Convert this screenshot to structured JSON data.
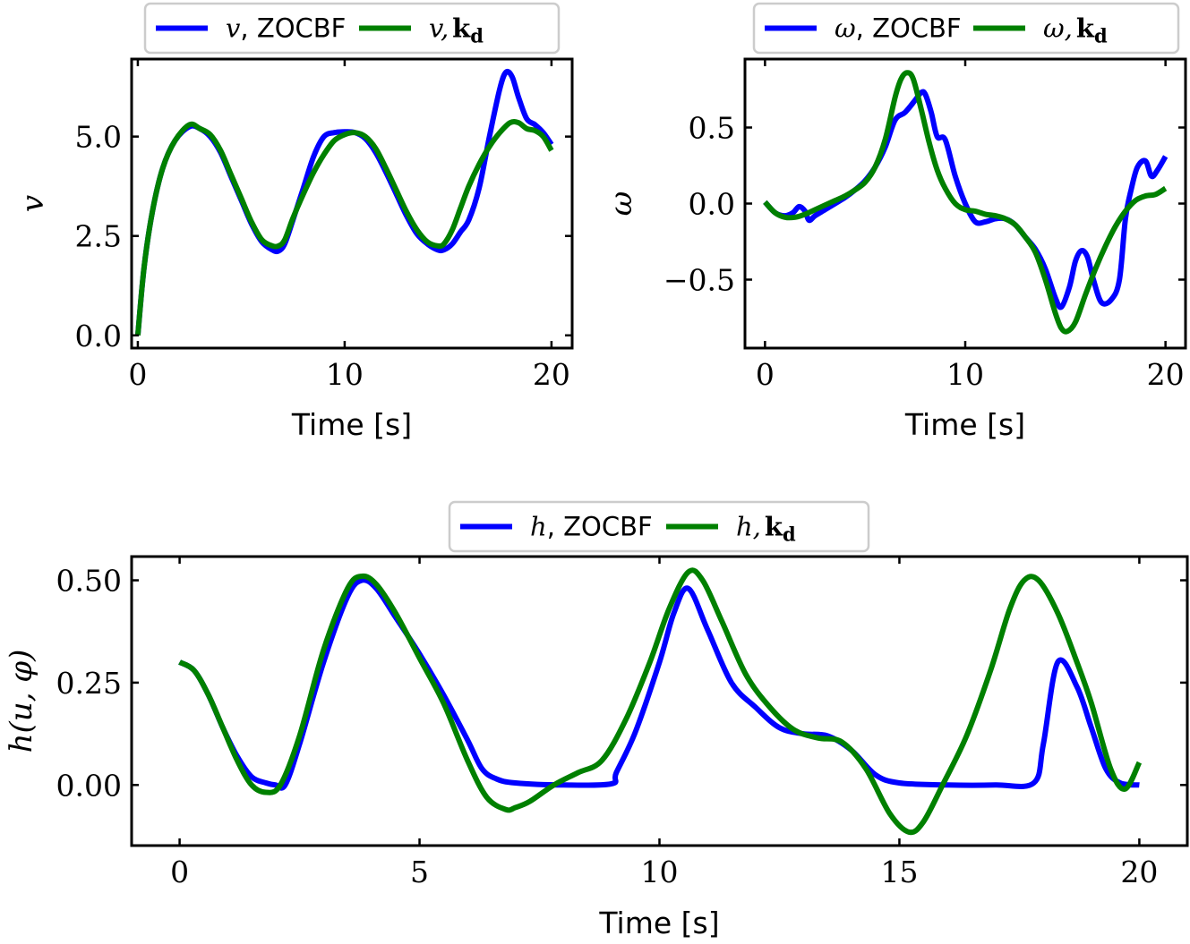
{
  "chart_data": [
    {
      "type": "line",
      "xlabel": "Time [s]",
      "ylabel": "v",
      "xlim": [
        -0.3,
        21.0
      ],
      "ylim": [
        -0.32,
        6.95
      ],
      "xticks": [
        0,
        10,
        20
      ],
      "xtick_labels": [
        "0",
        "10",
        "20"
      ],
      "yticks": [
        0.0,
        2.5,
        5.0
      ],
      "ytick_labels": [
        "0.0",
        "2.5",
        "5.0"
      ],
      "grid": false,
      "legend_position": "top-center-outside",
      "series": [
        {
          "name": "v, ZOCBF",
          "legend_var": "v",
          "legend_suffix": "ZOCBF",
          "color": "#0000ff",
          "x": [
            0,
            0.3,
            0.7,
            1.2,
            1.8,
            2.5,
            3.0,
            3.5,
            4.0,
            4.5,
            5.0,
            5.5,
            6.0,
            6.5,
            6.8,
            7.1,
            7.5,
            8.0,
            8.5,
            9.0,
            9.5,
            10.0,
            10.5,
            11.0,
            11.5,
            12.0,
            12.5,
            13.0,
            13.5,
            14.0,
            14.5,
            14.8,
            15.2,
            15.6,
            16.0,
            16.5,
            17.0,
            17.5,
            17.8,
            18.1,
            18.4,
            18.8,
            19.2,
            19.6,
            20.0
          ],
          "y": [
            0.0,
            1.7,
            3.1,
            4.2,
            4.9,
            5.25,
            5.2,
            5.0,
            4.6,
            4.0,
            3.4,
            2.8,
            2.35,
            2.15,
            2.12,
            2.3,
            2.9,
            3.7,
            4.5,
            5.0,
            5.1,
            5.12,
            5.1,
            4.95,
            4.6,
            4.1,
            3.55,
            3.0,
            2.55,
            2.3,
            2.15,
            2.15,
            2.3,
            2.6,
            2.9,
            3.7,
            5.0,
            6.2,
            6.62,
            6.5,
            6.0,
            5.45,
            5.3,
            5.1,
            4.8
          ]
        },
        {
          "name": "v, k_d",
          "legend_var": "v,",
          "legend_suffix": "kd",
          "color": "#008000",
          "x": [
            0,
            0.3,
            0.7,
            1.2,
            1.8,
            2.5,
            3.0,
            3.5,
            4.0,
            4.5,
            5.0,
            5.5,
            6.0,
            6.5,
            6.8,
            7.1,
            7.5,
            8.0,
            8.5,
            9.0,
            9.5,
            10.0,
            10.5,
            11.0,
            11.5,
            12.0,
            12.5,
            13.0,
            13.5,
            14.0,
            14.5,
            14.8,
            15.2,
            15.6,
            16.0,
            16.5,
            17.0,
            17.5,
            18.0,
            18.4,
            18.8,
            19.2,
            19.6,
            20.0
          ],
          "y": [
            0.0,
            1.7,
            3.1,
            4.2,
            4.9,
            5.3,
            5.2,
            5.05,
            4.65,
            4.05,
            3.45,
            2.85,
            2.4,
            2.25,
            2.25,
            2.4,
            2.95,
            3.55,
            4.1,
            4.55,
            4.9,
            5.05,
            5.1,
            5.0,
            4.7,
            4.2,
            3.65,
            3.1,
            2.65,
            2.35,
            2.25,
            2.3,
            2.65,
            3.2,
            3.75,
            4.3,
            4.75,
            5.1,
            5.35,
            5.35,
            5.2,
            5.15,
            5.0,
            4.65
          ]
        }
      ]
    },
    {
      "type": "line",
      "xlabel": "Time [s]",
      "ylabel": "ω",
      "xlim": [
        -1.0,
        21.0
      ],
      "ylim": [
        -0.95,
        0.95
      ],
      "xticks": [
        0,
        10,
        20
      ],
      "xtick_labels": [
        "0",
        "10",
        "20"
      ],
      "yticks": [
        -0.5,
        0.0,
        0.5
      ],
      "ytick_labels": [
        "−0.5",
        "0.0",
        "0.5"
      ],
      "grid": false,
      "legend_position": "top-center-outside",
      "series": [
        {
          "name": "ω, ZOCBF",
          "legend_var": "ω",
          "legend_suffix": "ZOCBF",
          "color": "#0000ff",
          "x": [
            0,
            0.5,
            1.0,
            1.4,
            1.7,
            2.0,
            2.2,
            2.5,
            3.0,
            3.5,
            4.0,
            4.5,
            5.0,
            5.5,
            6.0,
            6.5,
            7.0,
            7.5,
            7.8,
            8.0,
            8.3,
            8.6,
            9.0,
            9.5,
            10.0,
            10.5,
            11.0,
            11.5,
            12.0,
            12.5,
            13.0,
            13.5,
            14.0,
            14.5,
            14.8,
            15.2,
            15.5,
            15.8,
            16.1,
            16.4,
            16.8,
            17.3,
            17.7,
            18.0,
            18.3,
            18.6,
            19.0,
            19.3,
            19.6,
            20.0
          ],
          "y": [
            0.01,
            -0.06,
            -0.08,
            -0.06,
            -0.02,
            -0.05,
            -0.11,
            -0.08,
            -0.04,
            0.0,
            0.04,
            0.09,
            0.15,
            0.24,
            0.37,
            0.55,
            0.6,
            0.68,
            0.73,
            0.72,
            0.6,
            0.44,
            0.42,
            0.18,
            0.0,
            -0.12,
            -0.12,
            -0.1,
            -0.1,
            -0.14,
            -0.22,
            -0.3,
            -0.43,
            -0.62,
            -0.68,
            -0.55,
            -0.38,
            -0.31,
            -0.35,
            -0.5,
            -0.65,
            -0.63,
            -0.5,
            -0.1,
            0.1,
            0.24,
            0.28,
            0.18,
            0.22,
            0.31
          ]
        },
        {
          "name": "ω, k_d",
          "legend_var": "ω,",
          "legend_suffix": "kd",
          "color": "#008000",
          "x": [
            0,
            0.5,
            1.0,
            1.5,
            2.0,
            2.5,
            3.0,
            3.5,
            4.0,
            4.5,
            5.0,
            5.5,
            6.0,
            6.5,
            6.8,
            7.1,
            7.4,
            7.8,
            8.2,
            8.6,
            9.0,
            9.5,
            10.0,
            10.5,
            11.0,
            11.5,
            12.0,
            12.5,
            13.0,
            13.5,
            14.0,
            14.5,
            14.8,
            15.1,
            15.5,
            16.0,
            16.5,
            17.0,
            17.5,
            18.0,
            18.5,
            19.0,
            19.5,
            20.0
          ],
          "y": [
            0.01,
            -0.06,
            -0.09,
            -0.09,
            -0.07,
            -0.04,
            -0.01,
            0.02,
            0.05,
            0.09,
            0.14,
            0.24,
            0.42,
            0.7,
            0.82,
            0.86,
            0.82,
            0.62,
            0.4,
            0.22,
            0.1,
            0.0,
            -0.04,
            -0.05,
            -0.07,
            -0.08,
            -0.1,
            -0.14,
            -0.22,
            -0.32,
            -0.5,
            -0.72,
            -0.82,
            -0.84,
            -0.78,
            -0.6,
            -0.43,
            -0.28,
            -0.15,
            -0.05,
            0.02,
            0.05,
            0.06,
            0.1
          ]
        }
      ]
    },
    {
      "type": "line",
      "xlabel": "Time [s]",
      "ylabel": "h(u, φ)",
      "xlim": [
        -1.0,
        21.0
      ],
      "ylim": [
        -0.148,
        0.558
      ],
      "xticks": [
        0,
        5,
        10,
        15,
        20
      ],
      "xtick_labels": [
        "0",
        "5",
        "10",
        "15",
        "20"
      ],
      "yticks": [
        0.0,
        0.25,
        0.5
      ],
      "ytick_labels": [
        "0.00",
        "0.25",
        "0.50"
      ],
      "grid": false,
      "legend_position": "top-center-outside",
      "series": [
        {
          "name": "h, ZOCBF",
          "legend_var": "h",
          "legend_suffix": "ZOCBF",
          "color": "#0000ff",
          "x": [
            0,
            0.3,
            0.6,
            0.9,
            1.2,
            1.5,
            1.8,
            2.0,
            2.2,
            2.5,
            3.0,
            3.5,
            3.8,
            4.1,
            4.5,
            5.0,
            5.5,
            6.0,
            6.3,
            6.6,
            7.0,
            8.0,
            9.0,
            9.1,
            9.5,
            10.0,
            10.3,
            10.6,
            11.0,
            11.5,
            12.0,
            12.5,
            13.0,
            13.5,
            14.0,
            14.5,
            15.0,
            16.0,
            17.0,
            17.8,
            18.0,
            18.3,
            18.7,
            19.0,
            19.3,
            19.6,
            20.0
          ],
          "y": [
            0.3,
            0.28,
            0.22,
            0.14,
            0.07,
            0.02,
            0.005,
            0.0,
            0.0,
            0.1,
            0.3,
            0.46,
            0.5,
            0.48,
            0.41,
            0.32,
            0.22,
            0.11,
            0.04,
            0.015,
            0.005,
            0.0,
            0.003,
            0.03,
            0.13,
            0.3,
            0.42,
            0.48,
            0.38,
            0.25,
            0.19,
            0.14,
            0.125,
            0.12,
            0.085,
            0.025,
            0.005,
            0.0,
            0.0,
            0.005,
            0.1,
            0.3,
            0.24,
            0.14,
            0.04,
            0.005,
            0.0
          ]
        },
        {
          "name": "h, k_d",
          "legend_var": "h,",
          "legend_suffix": "kd",
          "color": "#008000",
          "x": [
            0,
            0.3,
            0.6,
            0.9,
            1.2,
            1.5,
            1.8,
            2.1,
            2.5,
            3.0,
            3.5,
            3.8,
            4.1,
            4.5,
            5.0,
            5.5,
            6.0,
            6.4,
            6.8,
            7.0,
            7.3,
            7.8,
            8.3,
            8.8,
            9.3,
            9.8,
            10.2,
            10.6,
            10.9,
            11.3,
            11.8,
            12.3,
            12.8,
            13.3,
            13.8,
            14.3,
            14.8,
            15.2,
            15.5,
            15.9,
            16.4,
            16.9,
            17.3,
            17.6,
            17.9,
            18.3,
            18.7,
            19.0,
            19.4,
            19.7,
            20.0
          ],
          "y": [
            0.3,
            0.28,
            0.22,
            0.14,
            0.06,
            0.0,
            -0.018,
            0.0,
            0.12,
            0.33,
            0.48,
            0.51,
            0.49,
            0.42,
            0.31,
            0.2,
            0.06,
            -0.03,
            -0.06,
            -0.055,
            -0.04,
            0.0,
            0.03,
            0.06,
            0.16,
            0.3,
            0.43,
            0.52,
            0.5,
            0.4,
            0.27,
            0.19,
            0.135,
            0.115,
            0.105,
            0.04,
            -0.07,
            -0.115,
            -0.09,
            0.0,
            0.12,
            0.28,
            0.43,
            0.5,
            0.5,
            0.42,
            0.3,
            0.2,
            0.04,
            -0.01,
            0.055
          ]
        }
      ]
    }
  ]
}
